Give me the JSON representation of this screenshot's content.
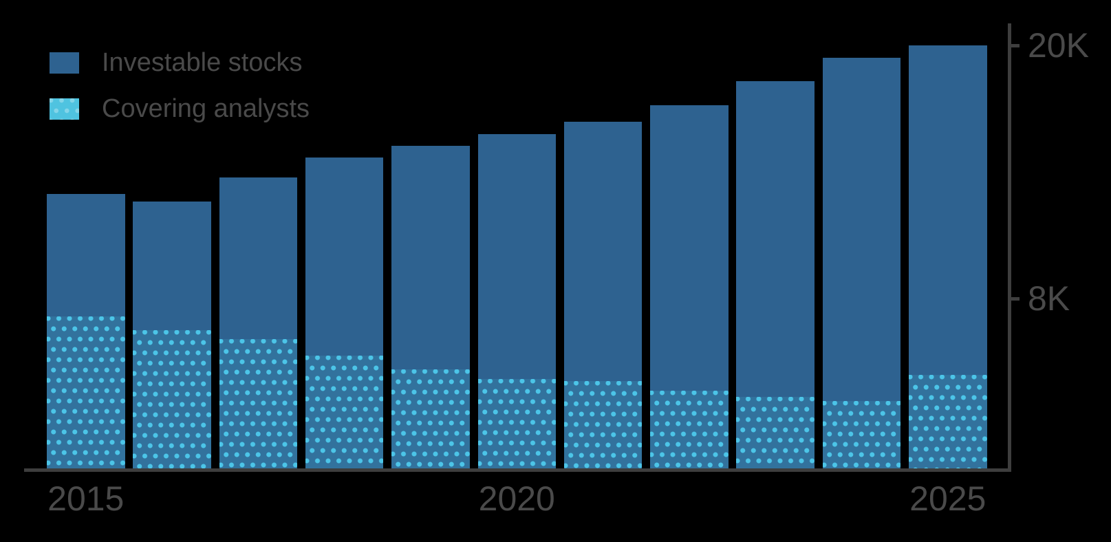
{
  "chart_data": {
    "type": "bar",
    "title": "",
    "categories": [
      2015,
      2016,
      2017,
      2018,
      2019,
      2020,
      2021,
      2022,
      2023,
      2024,
      2025
    ],
    "series": [
      {
        "name": "Investable stocks",
        "values": [
          12950,
          12600,
          13750,
          14700,
          15250,
          15800,
          16400,
          17150,
          18300,
          19400,
          20000
        ],
        "style": "solid"
      },
      {
        "name": "Covering analysts",
        "values": [
          7150,
          6500,
          6100,
          5300,
          4650,
          4200,
          4100,
          3650,
          3350,
          3150,
          4400
        ],
        "style": "dotted-overlay"
      }
    ],
    "ylim": [
      0,
      20000
    ],
    "yticks": [
      {
        "value": 8000,
        "label": "8K"
      },
      {
        "value": 20000,
        "label": "20K"
      }
    ],
    "xticks": [
      {
        "year": 2015,
        "label": "2015"
      },
      {
        "year": 2020,
        "label": "2020"
      },
      {
        "year": 2025,
        "label": "2025"
      }
    ],
    "legend_position": "top-left",
    "y_axis_side": "right",
    "grid": false
  },
  "legend": {
    "items": [
      {
        "label": "Investable stocks",
        "swatch": "solid-blue"
      },
      {
        "label": "Covering analysts",
        "swatch": "dotted-cyan"
      }
    ]
  },
  "colors": {
    "bar_blue": "#2E6290",
    "dot_cyan": "#4CC5E8",
    "legend_cyan": "#4FC3E0",
    "axis_gray": "#3E3E3E",
    "label_gray": "#4A4A4A",
    "background": "#000000"
  }
}
